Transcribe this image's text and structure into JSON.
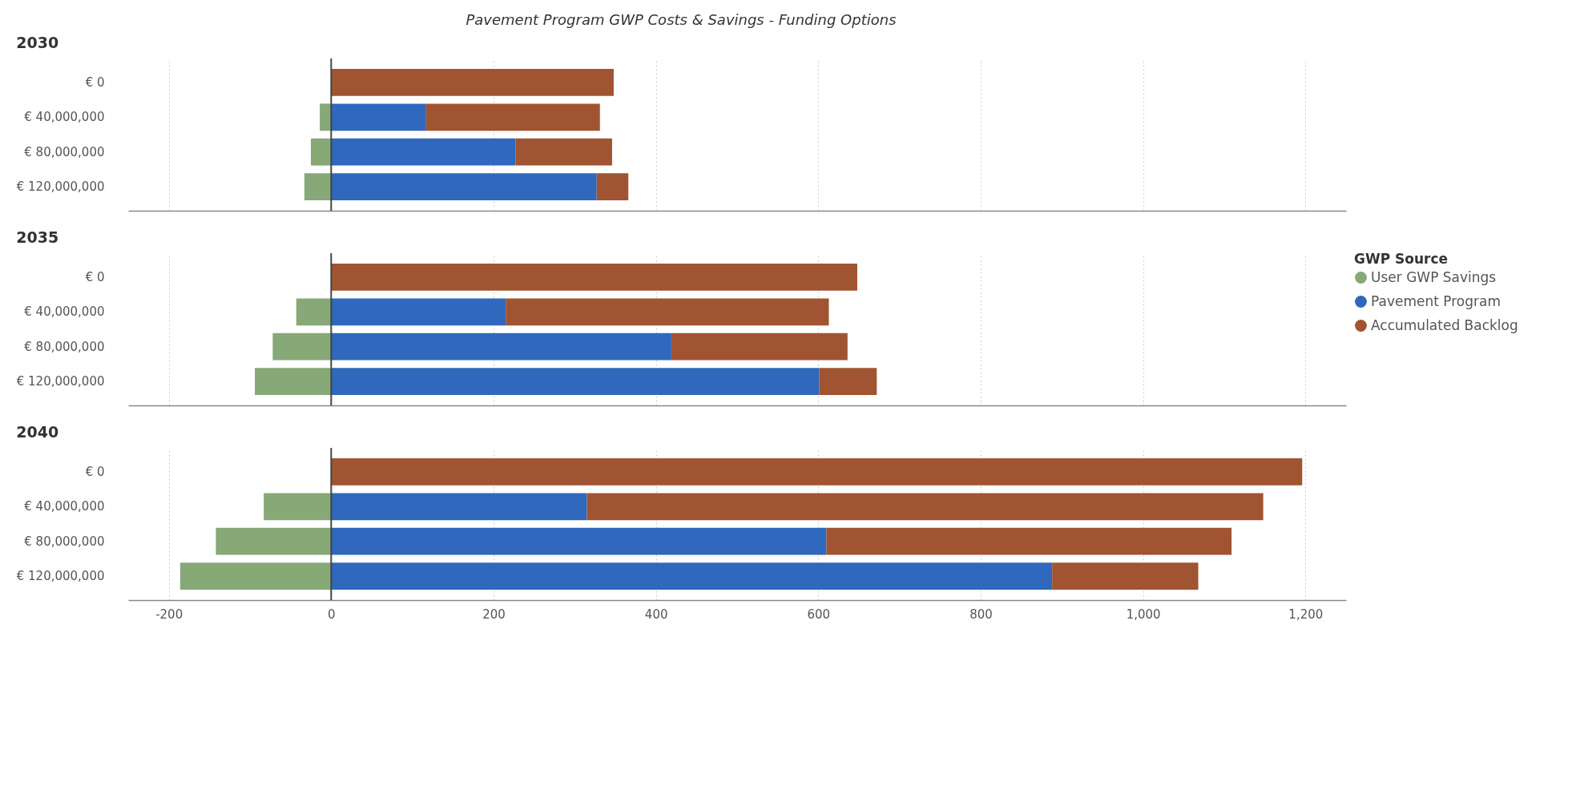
{
  "chart_data": [
    {
      "type": "bar",
      "title": "Pavement Program GWP Costs & Savings - Funding Options",
      "subtitle": "2030",
      "orientation": "horizontal",
      "stacked": true,
      "categories": [
        "€ 0",
        "€ 40,000,000",
        "€ 80,000,000",
        "€ 120,000,000"
      ],
      "series": [
        {
          "color": "#87a877",
          "values": [
            null,
            -14,
            -25,
            -33
          ]
        },
        {
          "color": "#2f68bd",
          "values": [
            null,
            117,
            227,
            327
          ]
        },
        {
          "color": "#a05432",
          "values": [
            348,
            214,
            119,
            39
          ]
        }
      ],
      "xlim": [
        -250,
        1250
      ],
      "xticks": [
        {
          "value": -200,
          "label": null
        },
        {
          "value": 0,
          "label": null
        },
        {
          "value": 200,
          "label": null
        },
        {
          "value": 400,
          "label": null
        },
        {
          "value": 600,
          "label": null
        },
        {
          "value": 800,
          "label": null
        },
        {
          "value": 1000,
          "label": null
        },
        {
          "value": 1200,
          "label": null
        }
      ],
      "tick_labels": "y",
      "grid": "x",
      "ref_lines": [
        {
          "axis": "x",
          "value": 0,
          "color": "#444444"
        }
      ]
    },
    {
      "type": "bar",
      "subtitle": "2035",
      "orientation": "horizontal",
      "stacked": true,
      "categories": [
        "€ 0",
        "€ 40,000,000",
        "€ 80,000,000",
        "€ 120,000,000"
      ],
      "legend": "right",
      "legend_title": "GWP Source",
      "series": [
        {
          "name": "User GWP Savings",
          "color": "#87a877",
          "values": [
            null,
            -43,
            -72,
            -94
          ]
        },
        {
          "name": "Pavement Program",
          "color": "#2f68bd",
          "values": [
            null,
            215,
            419,
            601
          ]
        },
        {
          "name": "Accumulated Backlog",
          "color": "#a05432",
          "values": [
            648,
            398,
            217,
            71
          ]
        }
      ],
      "xlim": [
        -250,
        1250
      ],
      "xticks": [
        {
          "value": -200,
          "label": null
        },
        {
          "value": 0,
          "label": null
        },
        {
          "value": 200,
          "label": null
        },
        {
          "value": 400,
          "label": null
        },
        {
          "value": 600,
          "label": null
        },
        {
          "value": 800,
          "label": null
        },
        {
          "value": 1000,
          "label": null
        },
        {
          "value": 1200,
          "label": null
        }
      ],
      "tick_labels": "y",
      "grid": "x",
      "ref_lines": [
        {
          "axis": "x",
          "value": 0,
          "color": "#444444"
        }
      ]
    },
    {
      "type": "bar",
      "subtitle": "2040",
      "orientation": "horizontal",
      "stacked": true,
      "categories": [
        "€ 0",
        "€ 40,000,000",
        "€ 80,000,000",
        "€ 120,000,000"
      ],
      "series": [
        {
          "color": "#87a877",
          "values": [
            null,
            -83,
            -142,
            -186
          ]
        },
        {
          "color": "#2f68bd",
          "values": [
            null,
            315,
            610,
            888
          ]
        },
        {
          "color": "#a05432",
          "values": [
            1196,
            833,
            499,
            180
          ]
        }
      ],
      "xlim": [
        -250,
        1250
      ],
      "xticks": [
        -200,
        0,
        200,
        400,
        600,
        800,
        {
          "value": 1000,
          "label": "1,000"
        },
        {
          "value": 1200,
          "label": "1,200"
        }
      ],
      "grid": "x",
      "ref_lines": [
        {
          "axis": "x",
          "value": 0,
          "color": "#444444"
        }
      ]
    }
  ]
}
